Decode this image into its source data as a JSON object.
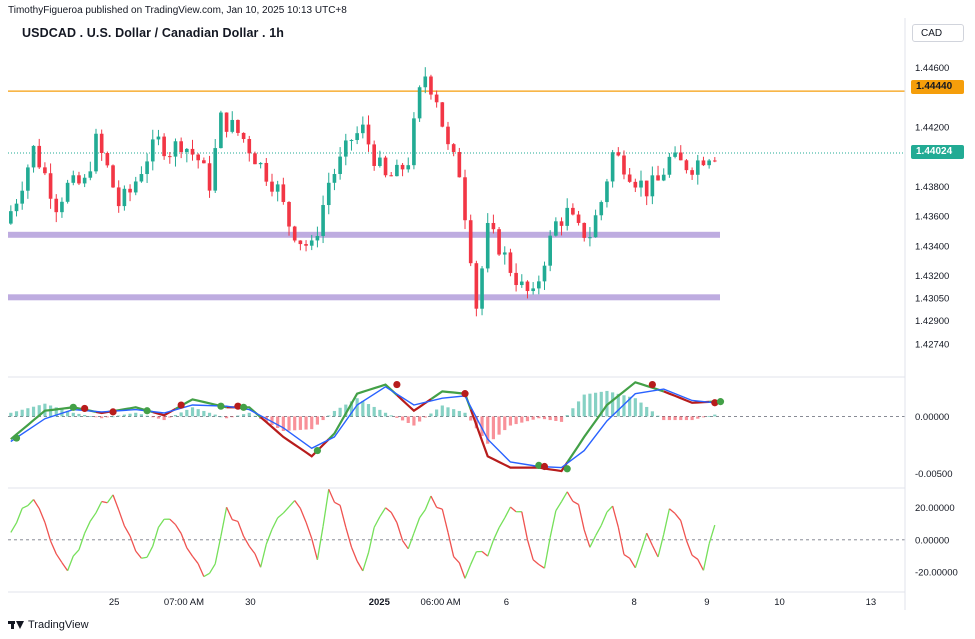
{
  "header": {
    "publisher": "TimothyFigueroa published on TradingView.com, Jan 10, 2025 10:13 UTC+8",
    "title": "USDCAD . U.S. Dollar / Canadian Dollar . 1h",
    "currency": "CAD"
  },
  "price_tags": {
    "line_level": "1.44440",
    "last_price": "1.44024"
  },
  "footer": {
    "brand": "TradingView"
  },
  "colors": {
    "bull": "#22ab94",
    "bear": "#f23645",
    "level_line": "#f59e0b",
    "zone": "#b39ddb",
    "macd_fast": "#43a047",
    "macd_slow": "#2962ff",
    "macd_bear": "#b71c1c",
    "osc_up": "#76e05a",
    "osc_down": "#ef5350"
  },
  "chart_data": [
    {
      "type": "candlestick",
      "panel": "price",
      "ylim": [
        1.426,
        1.4475
      ],
      "y_ticks": [
        "1.44600",
        "1.44200",
        "1.43800",
        "1.43600",
        "1.43400",
        "1.43200",
        "1.43050",
        "1.42900",
        "1.42740"
      ],
      "y_tick_values": [
        1.446,
        1.442,
        1.438,
        1.436,
        1.434,
        1.432,
        1.4305,
        1.429,
        1.4274
      ],
      "horizontal_line": 1.4444,
      "last_price": 1.44024,
      "zones": [
        {
          "low": 1.43455,
          "high": 1.43495
        },
        {
          "low": 1.43035,
          "high": 1.43075
        }
      ],
      "path": [
        [
          0,
          1.4355
        ],
        [
          2,
          1.4372
        ],
        [
          5,
          1.4405
        ],
        [
          7,
          1.4388
        ],
        [
          9,
          1.4368
        ],
        [
          11,
          1.438
        ],
        [
          14,
          1.4382
        ],
        [
          16,
          1.441
        ],
        [
          18,
          1.4392
        ],
        [
          20,
          1.4368
        ],
        [
          22,
          1.4376
        ],
        [
          25,
          1.44
        ],
        [
          27,
          1.441
        ],
        [
          29,
          1.4404
        ],
        [
          31,
          1.441
        ],
        [
          34,
          1.4398
        ],
        [
          36,
          1.4382
        ],
        [
          38,
          1.4425
        ],
        [
          40,
          1.442
        ],
        [
          42,
          1.4412
        ],
        [
          45,
          1.4394
        ],
        [
          48,
          1.4378
        ],
        [
          50,
          1.4355
        ],
        [
          52,
          1.4344
        ],
        [
          54,
          1.4338
        ],
        [
          55,
          1.4352
        ],
        [
          57,
          1.4383
        ],
        [
          59,
          1.4396
        ],
        [
          61,
          1.4412
        ],
        [
          63,
          1.4418
        ],
        [
          65,
          1.44
        ],
        [
          67,
          1.4385
        ],
        [
          69,
          1.4388
        ],
        [
          71,
          1.4398
        ],
        [
          73,
          1.4442
        ],
        [
          74,
          1.4455
        ],
        [
          76,
          1.444
        ],
        [
          78,
          1.4405
        ],
        [
          80,
          1.439
        ],
        [
          82,
          1.4335
        ],
        [
          83,
          1.43
        ],
        [
          85,
          1.435
        ],
        [
          87,
          1.434
        ],
        [
          89,
          1.4325
        ],
        [
          91,
          1.4312
        ],
        [
          93,
          1.4305
        ],
        [
          95,
          1.4332
        ],
        [
          97,
          1.4355
        ],
        [
          99,
          1.4362
        ],
        [
          101,
          1.435
        ],
        [
          103,
          1.4348
        ],
        [
          105,
          1.437
        ],
        [
          107,
          1.4402
        ],
        [
          109,
          1.4395
        ],
        [
          111,
          1.4385
        ],
        [
          113,
          1.4378
        ],
        [
          115,
          1.4383
        ],
        [
          117,
          1.4398
        ],
        [
          119,
          1.4395
        ],
        [
          121,
          1.4394
        ],
        [
          123,
          1.44
        ],
        [
          124,
          1.44024
        ]
      ]
    },
    {
      "type": "line",
      "panel": "macd",
      "ylim": [
        -0.0062,
        0.0032
      ],
      "y_ticks": [
        "0.00000",
        "-0.00500"
      ],
      "y_tick_values": [
        0.0,
        -0.005
      ],
      "fast": [
        [
          0,
          -0.002
        ],
        [
          6,
          0.0005
        ],
        [
          11,
          0.0008
        ],
        [
          16,
          0.0003
        ],
        [
          22,
          0.0008
        ],
        [
          27,
          0.0001
        ],
        [
          32,
          0.0015
        ],
        [
          38,
          0.0008
        ],
        [
          42,
          0.0008
        ],
        [
          48,
          -0.0018
        ],
        [
          53,
          -0.0035
        ],
        [
          57,
          -0.0015
        ],
        [
          61,
          0.002
        ],
        [
          66,
          0.0028
        ],
        [
          71,
          0.0005
        ],
        [
          76,
          0.0022
        ],
        [
          80,
          0.002
        ],
        [
          84,
          -0.0035
        ],
        [
          88,
          -0.0045
        ],
        [
          93,
          -0.0045
        ],
        [
          97,
          -0.0048
        ],
        [
          101,
          -0.0018
        ],
        [
          105,
          0.001
        ],
        [
          110,
          0.003
        ],
        [
          115,
          0.0022
        ],
        [
          120,
          0.0012
        ],
        [
          124,
          0.0013
        ]
      ],
      "slow": [
        [
          0,
          -0.0022
        ],
        [
          6,
          -0.0002
        ],
        [
          11,
          0.0006
        ],
        [
          16,
          0.0004
        ],
        [
          22,
          0.0006
        ],
        [
          27,
          0.0003
        ],
        [
          32,
          0.001
        ],
        [
          38,
          0.0009
        ],
        [
          42,
          0.0006
        ],
        [
          48,
          -0.001
        ],
        [
          53,
          -0.0028
        ],
        [
          57,
          -0.0018
        ],
        [
          61,
          0.001
        ],
        [
          66,
          0.0026
        ],
        [
          71,
          0.001
        ],
        [
          76,
          0.0016
        ],
        [
          80,
          0.0018
        ],
        [
          84,
          -0.002
        ],
        [
          88,
          -0.004
        ],
        [
          93,
          -0.0044
        ],
        [
          97,
          -0.0045
        ],
        [
          101,
          -0.003
        ],
        [
          105,
          -0.0004
        ],
        [
          110,
          0.002
        ],
        [
          115,
          0.0024
        ],
        [
          120,
          0.0014
        ],
        [
          124,
          0.0012
        ]
      ],
      "cross_points": [
        [
          1,
          -0.0019,
          "up"
        ],
        [
          11,
          0.0008,
          "up"
        ],
        [
          13,
          0.0007,
          "down"
        ],
        [
          18,
          0.0004,
          "down"
        ],
        [
          24,
          0.0005,
          "up"
        ],
        [
          30,
          0.001,
          "down"
        ],
        [
          37,
          0.0009,
          "up"
        ],
        [
          40,
          0.0009,
          "down"
        ],
        [
          41,
          0.0008,
          "up"
        ],
        [
          54,
          -0.003,
          "up"
        ],
        [
          68,
          0.0028,
          "down"
        ],
        [
          80,
          0.002,
          "down"
        ],
        [
          93,
          -0.0043,
          "up"
        ],
        [
          94,
          -0.0044,
          "down"
        ],
        [
          98,
          -0.0046,
          "up"
        ],
        [
          113,
          0.0028,
          "down"
        ],
        [
          124,
          0.0012,
          "down"
        ],
        [
          125,
          0.0013,
          "up"
        ]
      ]
    },
    {
      "type": "line",
      "panel": "oscillator",
      "ylim": [
        -30,
        31
      ],
      "y_ticks": [
        "20.00000",
        "0.00000",
        "-20.00000"
      ],
      "y_tick_values": [
        20,
        0,
        -20
      ],
      "values": [
        [
          0,
          5
        ],
        [
          2,
          18
        ],
        [
          4,
          25
        ],
        [
          6,
          10
        ],
        [
          8,
          -10
        ],
        [
          10,
          -18
        ],
        [
          12,
          -5
        ],
        [
          14,
          12
        ],
        [
          16,
          22
        ],
        [
          18,
          28
        ],
        [
          20,
          10
        ],
        [
          22,
          -8
        ],
        [
          24,
          -12
        ],
        [
          26,
          8
        ],
        [
          28,
          15
        ],
        [
          30,
          5
        ],
        [
          32,
          -10
        ],
        [
          34,
          -22
        ],
        [
          36,
          -15
        ],
        [
          38,
          20
        ],
        [
          40,
          10
        ],
        [
          42,
          -5
        ],
        [
          44,
          -15
        ],
        [
          46,
          5
        ],
        [
          48,
          18
        ],
        [
          50,
          25
        ],
        [
          52,
          10
        ],
        [
          54,
          -12
        ],
        [
          56,
          30
        ],
        [
          58,
          20
        ],
        [
          60,
          -5
        ],
        [
          62,
          -20
        ],
        [
          64,
          8
        ],
        [
          66,
          22
        ],
        [
          68,
          12
        ],
        [
          70,
          -8
        ],
        [
          72,
          15
        ],
        [
          74,
          25
        ],
        [
          76,
          18
        ],
        [
          78,
          -10
        ],
        [
          80,
          -22
        ],
        [
          82,
          -5
        ],
        [
          84,
          -12
        ],
        [
          86,
          10
        ],
        [
          88,
          22
        ],
        [
          90,
          15
        ],
        [
          92,
          -10
        ],
        [
          94,
          -18
        ],
        [
          96,
          20
        ],
        [
          98,
          30
        ],
        [
          100,
          22
        ],
        [
          102,
          -5
        ],
        [
          104,
          8
        ],
        [
          106,
          22
        ],
        [
          108,
          -10
        ],
        [
          110,
          -15
        ],
        [
          112,
          5
        ],
        [
          114,
          -12
        ],
        [
          116,
          18
        ],
        [
          118,
          10
        ],
        [
          120,
          -8
        ],
        [
          122,
          -18
        ],
        [
          124,
          10
        ]
      ]
    }
  ],
  "x_axis": {
    "labels": [
      {
        "text": "25",
        "pos": 18.2
      },
      {
        "text": "07:00 AM",
        "pos": 30.5
      },
      {
        "text": "30",
        "pos": 42.2
      },
      {
        "text": "2025",
        "pos": 64.9
      },
      {
        "text": "06:00 AM",
        "pos": 75.7
      },
      {
        "text": "6",
        "pos": 87.3
      },
      {
        "text": "8",
        "pos": 109.8
      },
      {
        "text": "9",
        "pos": 122.6
      },
      {
        "text": "10",
        "pos": 135.4
      },
      {
        "text": "13",
        "pos": 151.5
      }
    ]
  }
}
